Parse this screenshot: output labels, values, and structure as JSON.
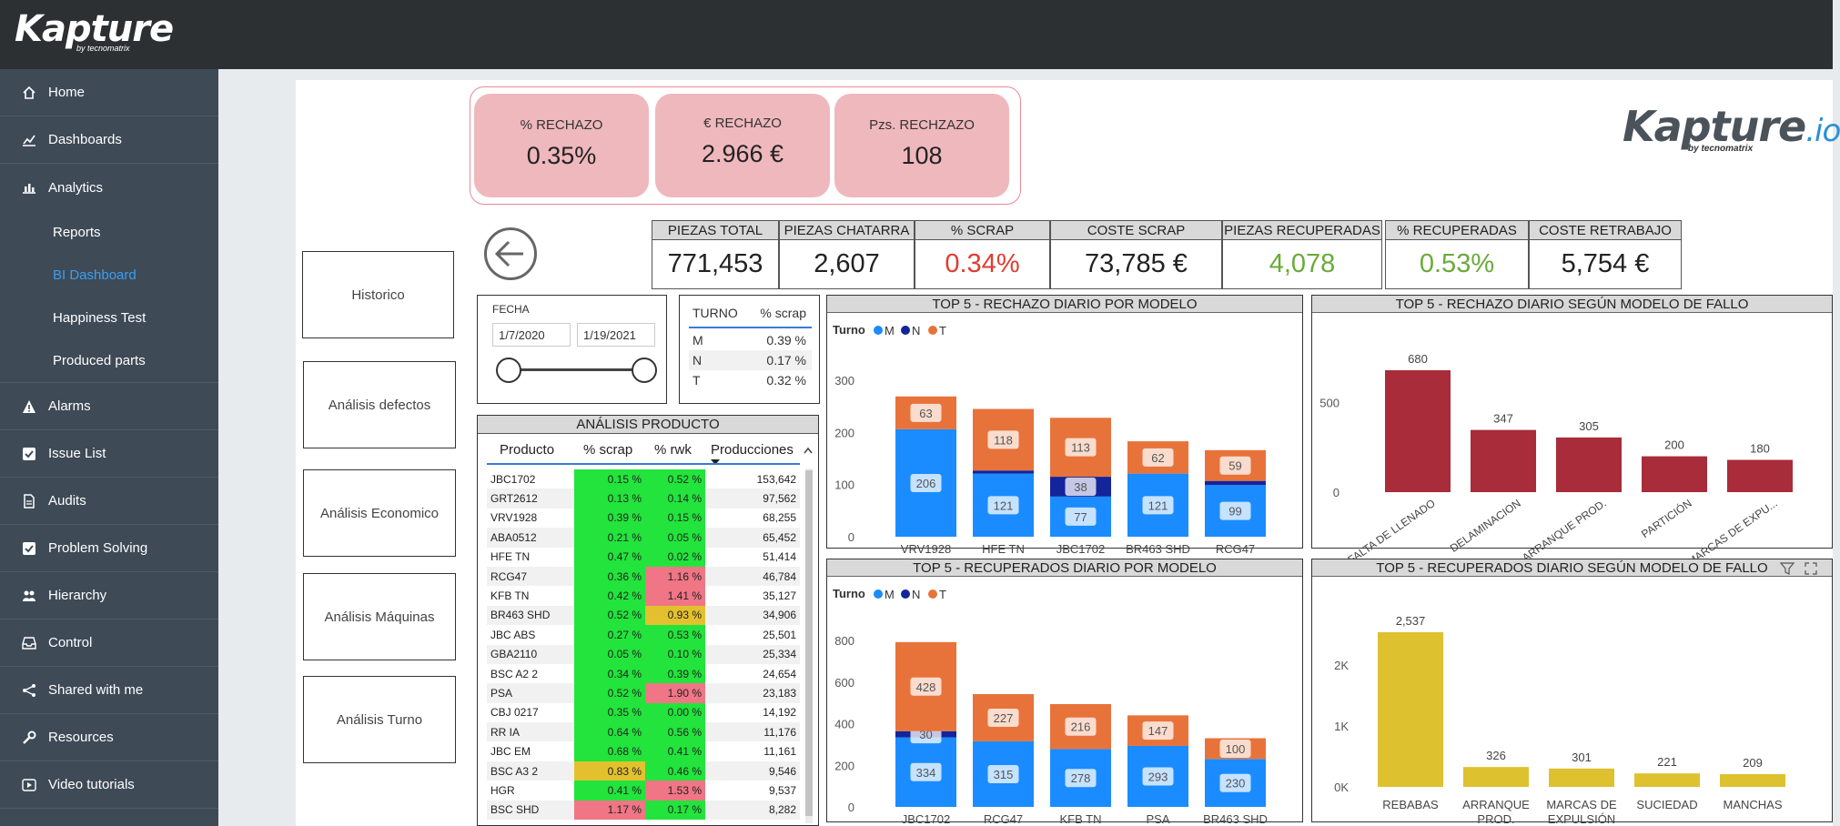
{
  "app": {
    "logo": "Kapture",
    "logo_sub": "by tecnomatrix"
  },
  "sidebar": {
    "items": [
      {
        "label": "Home",
        "icon": "home-icon"
      },
      {
        "label": "Dashboards",
        "icon": "line-chart-icon"
      },
      {
        "label": "Analytics",
        "icon": "bar-chart-icon"
      },
      {
        "label": "Alarms",
        "icon": "warning-icon"
      },
      {
        "label": "Issue List",
        "icon": "checkbox-icon"
      },
      {
        "label": "Audits",
        "icon": "document-icon"
      },
      {
        "label": "Problem Solving",
        "icon": "checkbox-icon"
      },
      {
        "label": "Hierarchy",
        "icon": "users-icon"
      },
      {
        "label": "Control",
        "icon": "inbox-icon"
      },
      {
        "label": "Shared with me",
        "icon": "share-icon"
      },
      {
        "label": "Resources",
        "icon": "wrench-icon"
      },
      {
        "label": "Video tutorials",
        "icon": "video-icon"
      }
    ],
    "subitems": [
      {
        "label": "Reports"
      },
      {
        "label": "BI Dashboard"
      },
      {
        "label": "Happiness Test"
      },
      {
        "label": "Produced parts"
      }
    ]
  },
  "kpis": {
    "rechazo_pct": {
      "label": "%  RECHAZO",
      "value": "0.35%"
    },
    "rechazo_eur": {
      "label": "€ RECHAZO",
      "value": "2.966 €"
    },
    "rechazo_pzs": {
      "label": "Pzs. RECHZAZO",
      "value": "108"
    }
  },
  "brand": {
    "main": "Kapture",
    "io": ".io",
    "sub": "by tecnomatrix"
  },
  "metrics": [
    {
      "label": "PIEZAS TOTAL",
      "value": "771,453",
      "color": "#222222"
    },
    {
      "label": "PIEZAS CHATARRA",
      "value": "2,607",
      "color": "#222222"
    },
    {
      "label": "% SCRAP",
      "value": "0.34%",
      "color": "#e03c31"
    },
    {
      "label": "COSTE SCRAP",
      "value": "73,785 €",
      "color": "#222222"
    },
    {
      "label": "PIEZAS RECUPERADAS",
      "value": "4,078",
      "color": "#6aaa3a"
    },
    {
      "label": "% RECUPERADAS",
      "value": "0.53%",
      "color": "#6aaa3a"
    },
    {
      "label": "COSTE RETRABAJO",
      "value": "5,754 €",
      "color": "#222222"
    }
  ],
  "buttons": {
    "historico": "Historico",
    "defectos": "Análisis defectos",
    "economico": "Análisis Economico",
    "maquinas": "Análisis Máquinas",
    "turno": "Análisis Turno"
  },
  "fecha": {
    "title": "FECHA",
    "from": "1/7/2020",
    "to": "1/19/2021"
  },
  "turno_table": {
    "headers": [
      "TURNO",
      "% scrap"
    ],
    "rows": [
      [
        "M",
        "0.39 %"
      ],
      [
        "N",
        "0.17 %"
      ],
      [
        "T",
        "0.32 %"
      ]
    ]
  },
  "producto": {
    "title": "ANÁLISIS PRODUCTO",
    "headers": [
      "Producto",
      "% scrap",
      "% rwk",
      "Producciones"
    ],
    "rows": [
      [
        "JBC1702",
        "0.15 %",
        "0.52 %",
        "153,642",
        "g",
        "g"
      ],
      [
        "GRT2612",
        "0.13 %",
        "0.14 %",
        "97,562",
        "g",
        "g"
      ],
      [
        "VRV1928",
        "0.39 %",
        "0.15 %",
        "68,255",
        "g",
        "g"
      ],
      [
        "ABA0512",
        "0.21 %",
        "0.05 %",
        "65,452",
        "g",
        "g"
      ],
      [
        "HFE TN",
        "0.47 %",
        "0.02 %",
        "51,414",
        "g",
        "g"
      ],
      [
        "RCG47",
        "0.36 %",
        "1.16 %",
        "46,784",
        "g",
        "r"
      ],
      [
        "KFB TN",
        "0.42 %",
        "1.41 %",
        "35,127",
        "g",
        "r"
      ],
      [
        "BR463 SHD",
        "0.52 %",
        "0.93 %",
        "34,906",
        "g",
        "y"
      ],
      [
        "JBC ABS",
        "0.27 %",
        "0.53 %",
        "25,501",
        "g",
        "g"
      ],
      [
        "GBA2110",
        "0.05 %",
        "0.10 %",
        "25,334",
        "g",
        "g"
      ],
      [
        "BSC A2 2",
        "0.34 %",
        "0.39 %",
        "24,654",
        "g",
        "g"
      ],
      [
        "PSA",
        "0.52 %",
        "1.90 %",
        "23,183",
        "g",
        "r"
      ],
      [
        "CBJ 0217",
        "0.35 %",
        "0.00 %",
        "14,192",
        "g",
        "g"
      ],
      [
        "RR IA",
        "0.64 %",
        "0.56 %",
        "11,176",
        "g",
        "g"
      ],
      [
        "JBC EM",
        "0.68 %",
        "0.41 %",
        "11,161",
        "g",
        "g"
      ],
      [
        "BSC A3 2",
        "0.83 %",
        "0.46 %",
        "9,546",
        "y",
        "g"
      ],
      [
        "HGR",
        "0.41 %",
        "1.53 %",
        "9,537",
        "g",
        "r"
      ],
      [
        "BSC SHD",
        "1.17 %",
        "0.17 %",
        "8,282",
        "r",
        "g"
      ]
    ]
  },
  "colors": {
    "M": "#1a8cff",
    "N": "#14249a",
    "T": "#e8733a",
    "red_bar": "#a82c3a",
    "yellow_bar": "#dec12f",
    "green_cell": "#22e43c",
    "red_cell": "#f07585",
    "yellow_cell": "#e3c12e"
  },
  "chart_data": [
    {
      "type": "bar",
      "title": "TOP 5 - RECHAZO DIARIO POR MODELO",
      "legend_title": "Turno",
      "categories": [
        "VRV1928",
        "HFE TN",
        "JBC1702",
        "BR463 SHD",
        "RCG47"
      ],
      "series": [
        {
          "name": "M",
          "values": [
            206,
            121,
            77,
            121,
            99
          ]
        },
        {
          "name": "N",
          "values": [
            0,
            6,
            38,
            0,
            8
          ]
        },
        {
          "name": "T",
          "values": [
            63,
            118,
            113,
            62,
            59
          ]
        }
      ],
      "ylim": [
        0,
        300
      ],
      "yticks": [
        "0",
        "100",
        "200",
        "300"
      ],
      "stacked": true
    },
    {
      "type": "bar",
      "title": "TOP 5 - RECHAZO DIARIO SEGÚN MODELO DE FALLO",
      "categories": [
        "FALTA DE LLENADO",
        "DELAMINACION",
        "ARRANQUE PROD.",
        "PARTICIÓN",
        "MARCAS DE EXPU..."
      ],
      "values": [
        680,
        347,
        305,
        200,
        180
      ],
      "ylim": [
        0,
        680
      ],
      "yticks": [
        "0",
        "500"
      ]
    },
    {
      "type": "bar",
      "title": "TOP 5 - RECUPERADOS DIARIO POR MODELO",
      "legend_title": "Turno",
      "categories": [
        "JBC1702",
        "RCG47",
        "KFB TN",
        "PSA",
        "BR463 SHD"
      ],
      "series": [
        {
          "name": "M",
          "values": [
            334,
            315,
            278,
            293,
            230
          ]
        },
        {
          "name": "N",
          "values": [
            30,
            0,
            0,
            0,
            0
          ]
        },
        {
          "name": "T",
          "values": [
            428,
            227,
            216,
            147,
            100
          ]
        }
      ],
      "ylim": [
        0,
        800
      ],
      "yticks": [
        "0",
        "200",
        "400",
        "600",
        "800"
      ],
      "stacked": true
    },
    {
      "type": "bar",
      "title": "TOP 5 - RECUPERADOS DIARIO SEGÚN MODELO DE FALLO",
      "categories": [
        "REBABAS",
        "ARRANQUE PROD.",
        "MARCAS DE EXPULSIÓN",
        "SUCIEDAD",
        "MANCHAS"
      ],
      "values": [
        2537,
        326,
        301,
        221,
        209
      ],
      "value_labels": [
        "2,537",
        "326",
        "301",
        "221",
        "209"
      ],
      "ylim": [
        0,
        2537
      ],
      "yticks": [
        "0K",
        "1K",
        "2K"
      ]
    }
  ]
}
